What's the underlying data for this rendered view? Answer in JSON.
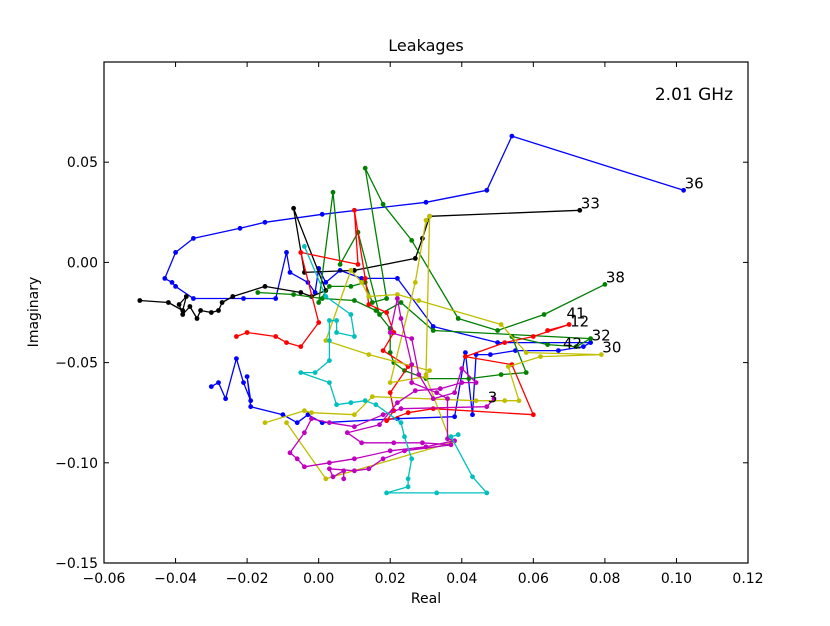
{
  "chart_data": {
    "type": "line",
    "title": "Leakages",
    "xlabel": "Real",
    "ylabel": "Imaginary",
    "annotation": "2.01 GHz",
    "xlim": [
      -0.06,
      0.12
    ],
    "ylim": [
      -0.15,
      0.1
    ],
    "x_ticks": [
      -0.06,
      -0.04,
      -0.02,
      0.0,
      0.02,
      0.04,
      0.06,
      0.08,
      0.1,
      0.12
    ],
    "x_tick_labels": [
      "−0.06",
      "−0.04",
      "−0.02",
      "0.00",
      "0.02",
      "0.04",
      "0.06",
      "0.08",
      "0.10",
      "0.12"
    ],
    "y_ticks": [
      -0.15,
      -0.1,
      -0.05,
      0.0,
      0.05
    ],
    "y_tick_labels": [
      "−0.15",
      "−0.10",
      "−0.05",
      "0.00",
      "0.05"
    ],
    "grid": false,
    "legend": "none",
    "series": [
      {
        "color": "#0000ff",
        "end_label": "36",
        "points": [
          [
            -0.03,
            -0.062
          ],
          [
            -0.028,
            -0.06
          ],
          [
            -0.026,
            -0.068
          ],
          [
            -0.023,
            -0.048
          ],
          [
            -0.021,
            -0.06
          ],
          [
            -0.019,
            -0.069
          ],
          [
            -0.02,
            -0.057
          ],
          [
            -0.019,
            -0.072
          ],
          [
            -0.01,
            -0.076
          ],
          [
            -0.006,
            -0.08
          ],
          [
            -0.003,
            -0.076
          ],
          [
            0.001,
            -0.08
          ],
          [
            0.022,
            -0.078
          ],
          [
            0.038,
            -0.077
          ],
          [
            0.041,
            -0.045
          ],
          [
            0.043,
            -0.076
          ],
          [
            0.044,
            -0.046
          ],
          [
            0.048,
            -0.046
          ],
          [
            0.055,
            -0.044
          ],
          [
            0.067,
            -0.044
          ],
          [
            0.074,
            -0.042
          ],
          [
            0.076,
            -0.04
          ],
          [
            0.05,
            -0.04
          ],
          [
            0.032,
            -0.032
          ],
          [
            0.022,
            -0.008
          ],
          [
            0.012,
            -0.008
          ],
          [
            0.006,
            -0.004
          ],
          [
            0.002,
            -0.01
          ],
          [
            0.0,
            -0.003
          ],
          [
            -0.001,
            -0.015
          ],
          [
            -0.003,
            -0.01
          ],
          [
            -0.008,
            -0.005
          ],
          [
            -0.009,
            0.005
          ],
          [
            -0.012,
            -0.018
          ],
          [
            -0.021,
            -0.018
          ],
          [
            -0.035,
            -0.018
          ],
          [
            -0.04,
            -0.012
          ],
          [
            -0.041,
            -0.01
          ],
          [
            -0.043,
            -0.008
          ],
          [
            -0.04,
            0.005
          ],
          [
            -0.035,
            0.012
          ],
          [
            -0.022,
            0.017
          ],
          [
            -0.015,
            0.02
          ],
          [
            0.001,
            0.024
          ],
          [
            0.03,
            0.03
          ],
          [
            0.047,
            0.036
          ],
          [
            0.054,
            0.063
          ],
          [
            0.102,
            0.036
          ]
        ]
      },
      {
        "color": "#000000",
        "end_label": "33",
        "points": [
          [
            -0.05,
            -0.019
          ],
          [
            -0.042,
            -0.02
          ],
          [
            -0.038,
            -0.024
          ],
          [
            -0.037,
            -0.017
          ],
          [
            -0.039,
            -0.021
          ],
          [
            -0.038,
            -0.026
          ],
          [
            -0.036,
            -0.022
          ],
          [
            -0.034,
            -0.028
          ],
          [
            -0.033,
            -0.024
          ],
          [
            -0.03,
            -0.025
          ],
          [
            -0.028,
            -0.024
          ],
          [
            -0.027,
            -0.02
          ],
          [
            -0.024,
            -0.017
          ],
          [
            -0.015,
            -0.012
          ],
          [
            -0.005,
            -0.015
          ],
          [
            -0.002,
            -0.017
          ],
          [
            0.002,
            -0.014
          ],
          [
            -0.007,
            0.027
          ],
          [
            -0.004,
            -0.005
          ],
          [
            0.01,
            -0.004
          ],
          [
            0.027,
            0.002
          ],
          [
            0.029,
            0.012
          ],
          [
            0.031,
            0.023
          ],
          [
            0.073,
            0.026
          ]
        ]
      },
      {
        "color": "#008000",
        "end_label": "38",
        "points": [
          [
            -0.017,
            -0.015
          ],
          [
            -0.007,
            -0.016
          ],
          [
            0.001,
            -0.018
          ],
          [
            0.01,
            -0.019
          ],
          [
            0.016,
            -0.024
          ],
          [
            0.02,
            -0.033
          ],
          [
            0.02,
            -0.045
          ],
          [
            0.021,
            -0.05
          ],
          [
            0.024,
            -0.054
          ],
          [
            0.03,
            -0.058
          ],
          [
            0.042,
            -0.058
          ],
          [
            0.051,
            -0.056
          ],
          [
            0.058,
            -0.055
          ],
          [
            0.054,
            -0.037
          ],
          [
            0.064,
            -0.041
          ],
          [
            0.072,
            -0.042
          ],
          [
            0.076,
            -0.038
          ],
          [
            0.032,
            -0.034
          ],
          [
            0.023,
            -0.02
          ],
          [
            0.017,
            -0.026
          ],
          [
            0.011,
            0.015
          ],
          [
            0.006,
            -0.001
          ],
          [
            0.004,
            0.035
          ],
          [
            0.0,
            -0.02
          ],
          [
            0.003,
            -0.012
          ],
          [
            0.009,
            -0.012
          ],
          [
            0.013,
            -0.01
          ],
          [
            0.015,
            -0.02
          ],
          [
            0.019,
            -0.018
          ],
          [
            0.013,
            0.047
          ],
          [
            0.018,
            0.029
          ],
          [
            0.026,
            0.011
          ],
          [
            0.039,
            -0.028
          ],
          [
            0.05,
            -0.034
          ],
          [
            0.063,
            -0.026
          ],
          [
            0.08,
            -0.011
          ]
        ]
      },
      {
        "color": "#ff0000",
        "end_label": "12",
        "points": [
          [
            -0.023,
            -0.037
          ],
          [
            -0.02,
            -0.035
          ],
          [
            -0.012,
            -0.037
          ],
          [
            -0.009,
            -0.04
          ],
          [
            -0.005,
            -0.042
          ],
          [
            0.0,
            -0.03
          ],
          [
            -0.005,
            0.005
          ],
          [
            0.011,
            -0.001
          ],
          [
            0.01,
            0.026
          ],
          [
            0.013,
            -0.008
          ],
          [
            0.014,
            -0.021
          ],
          [
            0.019,
            -0.025
          ],
          [
            0.021,
            -0.035
          ],
          [
            0.018,
            -0.044
          ],
          [
            0.025,
            -0.052
          ],
          [
            0.02,
            -0.065
          ],
          [
            0.021,
            -0.074
          ],
          [
            0.019,
            -0.079
          ],
          [
            0.025,
            -0.075
          ],
          [
            0.032,
            -0.073
          ],
          [
            0.06,
            -0.076
          ],
          [
            0.054,
            -0.051
          ],
          [
            0.041,
            -0.047
          ],
          [
            0.052,
            -0.04
          ],
          [
            0.06,
            -0.037
          ],
          [
            0.07,
            -0.031
          ],
          [
            0.064,
            -0.034
          ]
        ]
      },
      {
        "color": "#bfbf00",
        "end_label": "30",
        "points": [
          [
            -0.015,
            -0.08
          ],
          [
            -0.004,
            -0.074
          ],
          [
            -0.002,
            -0.075
          ],
          [
            0.01,
            -0.076
          ],
          [
            0.015,
            -0.067
          ],
          [
            0.044,
            -0.069
          ],
          [
            0.052,
            -0.069
          ],
          [
            0.056,
            -0.069
          ],
          [
            0.053,
            -0.052
          ],
          [
            0.062,
            -0.047
          ],
          [
            0.079,
            -0.046
          ],
          [
            0.058,
            -0.045
          ],
          [
            0.051,
            -0.031
          ],
          [
            0.028,
            -0.019
          ],
          [
            0.022,
            -0.016
          ],
          [
            0.014,
            -0.017
          ],
          [
            0.012,
            -0.01
          ],
          [
            0.009,
            -0.004
          ],
          [
            0.002,
            -0.039
          ],
          [
            0.014,
            -0.046
          ],
          [
            0.031,
            -0.054
          ],
          [
            0.03,
            -0.056
          ],
          [
            0.031,
            0.023
          ],
          [
            0.03,
            0.021
          ],
          [
            0.027,
            -0.01
          ],
          [
            0.02,
            -0.06
          ],
          [
            0.03,
            -0.057
          ],
          [
            0.037,
            -0.09
          ],
          [
            0.002,
            -0.108
          ],
          [
            -0.009,
            -0.08
          ]
        ]
      },
      {
        "color": "#bf00bf",
        "end_label": "3",
        "points": [
          [
            0.007,
            -0.108
          ],
          [
            0.007,
            -0.104
          ],
          [
            0.004,
            -0.107
          ],
          [
            0.003,
            -0.103
          ],
          [
            0.01,
            -0.104
          ],
          [
            0.014,
            -0.103
          ],
          [
            0.018,
            -0.098
          ],
          [
            0.024,
            -0.094
          ],
          [
            0.037,
            -0.091
          ],
          [
            0.029,
            -0.09
          ],
          [
            0.021,
            -0.09
          ],
          [
            0.012,
            -0.09
          ],
          [
            0.008,
            -0.085
          ],
          [
            0.017,
            -0.081
          ],
          [
            0.022,
            -0.07
          ],
          [
            0.027,
            -0.064
          ],
          [
            0.034,
            -0.063
          ],
          [
            0.04,
            -0.06
          ],
          [
            0.044,
            -0.06
          ],
          [
            0.04,
            -0.053
          ],
          [
            0.038,
            -0.065
          ],
          [
            0.032,
            -0.068
          ],
          [
            0.028,
            -0.056
          ],
          [
            0.026,
            -0.038
          ],
          [
            0.02,
            -0.035
          ],
          [
            0.022,
            -0.018
          ],
          [
            0.023,
            -0.028
          ],
          [
            0.026,
            -0.051
          ],
          [
            0.026,
            -0.06
          ],
          [
            0.033,
            -0.065
          ],
          [
            0.036,
            -0.068
          ],
          [
            0.036,
            -0.088
          ],
          [
            0.038,
            -0.089
          ],
          [
            0.03,
            -0.092
          ],
          [
            0.02,
            -0.094
          ],
          [
            0.01,
            -0.098
          ],
          [
            0.003,
            -0.1
          ],
          [
            -0.004,
            -0.102
          ],
          [
            -0.006,
            -0.098
          ],
          [
            -0.008,
            -0.095
          ],
          [
            -0.004,
            -0.085
          ],
          [
            -0.002,
            -0.078
          ],
          [
            0.003,
            -0.08
          ],
          [
            0.01,
            -0.082
          ],
          [
            0.018,
            -0.076
          ],
          [
            0.023,
            -0.073
          ],
          [
            0.047,
            -0.072
          ],
          [
            0.049,
            -0.068
          ]
        ]
      },
      {
        "color": "#00bfbf",
        "end_label": "",
        "points": [
          [
            -0.004,
            0.008
          ],
          [
            0.002,
            -0.017
          ],
          [
            0.009,
            -0.026
          ],
          [
            0.01,
            -0.037
          ],
          [
            0.005,
            -0.035
          ],
          [
            0.005,
            -0.029
          ],
          [
            0.003,
            -0.029
          ],
          [
            0.003,
            -0.039
          ],
          [
            0.003,
            -0.049
          ],
          [
            -0.001,
            -0.055
          ],
          [
            -0.005,
            -0.055
          ],
          [
            0.003,
            -0.06
          ],
          [
            0.005,
            -0.071
          ],
          [
            0.009,
            -0.07
          ],
          [
            0.013,
            -0.069
          ],
          [
            0.016,
            -0.071
          ],
          [
            0.023,
            -0.08
          ],
          [
            0.024,
            -0.087
          ],
          [
            0.026,
            -0.098
          ],
          [
            0.025,
            -0.108
          ],
          [
            0.025,
            -0.112
          ],
          [
            0.019,
            -0.115
          ],
          [
            0.033,
            -0.115
          ],
          [
            0.047,
            -0.115
          ],
          [
            0.043,
            -0.107
          ],
          [
            0.037,
            -0.087
          ],
          [
            0.039,
            -0.086
          ]
        ]
      }
    ],
    "end_labels": [
      {
        "text": "36",
        "x": 0.102,
        "y": 0.036
      },
      {
        "text": "33",
        "x": 0.073,
        "y": 0.026
      },
      {
        "text": "38",
        "x": 0.08,
        "y": -0.011
      },
      {
        "text": "41",
        "x": 0.069,
        "y": -0.029
      },
      {
        "text": "12",
        "x": 0.07,
        "y": -0.033
      },
      {
        "text": "32",
        "x": 0.076,
        "y": -0.04
      },
      {
        "text": "42",
        "x": 0.068,
        "y": -0.044
      },
      {
        "text": "30",
        "x": 0.079,
        "y": -0.046
      },
      {
        "text": "3",
        "x": 0.047,
        "y": -0.071
      }
    ]
  }
}
